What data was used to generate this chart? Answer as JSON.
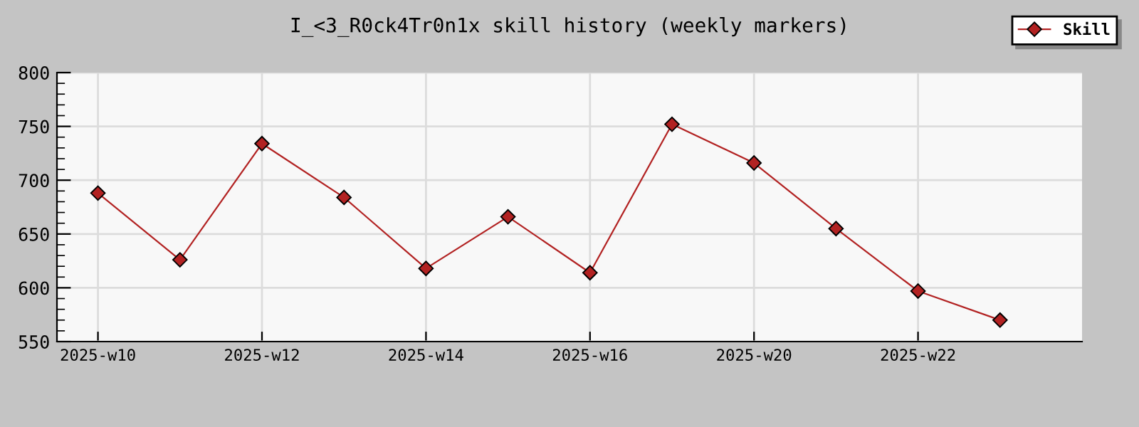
{
  "chart_data": {
    "type": "line",
    "title": "I_<3_R0ck4Tr0n1x skill history (weekly markers)",
    "categories": [
      "2025-w10",
      null,
      "2025-w12",
      null,
      "2025-w14",
      null,
      "2025-w16",
      null,
      "2025-w20",
      null,
      "2025-w22",
      null
    ],
    "series": [
      {
        "name": "Skill",
        "color": "#b22222",
        "values": [
          688,
          626,
          734,
          684,
          618,
          666,
          614,
          752,
          716,
          655,
          597,
          570
        ]
      }
    ],
    "ylim": [
      550,
      800
    ],
    "yticks": [
      550,
      600,
      650,
      700,
      750,
      800
    ],
    "grid": true,
    "legend": "top right",
    "marker": "diamond",
    "line_style": "solid"
  }
}
